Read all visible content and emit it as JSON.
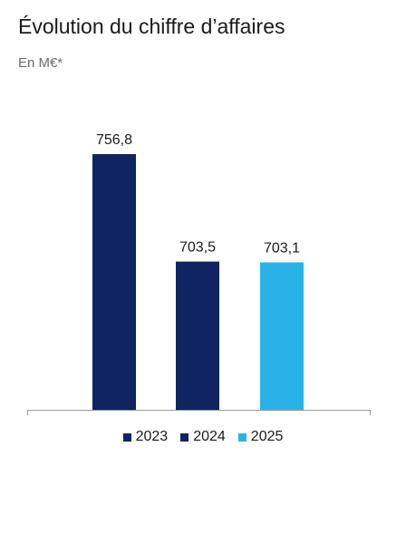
{
  "header": {
    "title": "Évolution du chiffre d’affaires",
    "subtitle": "En M€*"
  },
  "chart_data": {
    "type": "bar",
    "title": "Évolution du chiffre d’affaires",
    "subtitle": "En M€*",
    "xlabel": "",
    "ylabel": "",
    "categories": [
      "2023",
      "2024",
      "2025"
    ],
    "values": [
      756.8,
      703.5,
      703.1
    ],
    "value_labels": [
      "756,8",
      "703,5",
      "703,1"
    ],
    "colors": [
      "#0f2460",
      "#0f2460",
      "#29b2e8"
    ],
    "ylim": [
      630,
      770
    ],
    "grid": false,
    "legend": {
      "placement": "bottom",
      "entries": [
        {
          "label": "2023",
          "color": "#0f2460"
        },
        {
          "label": "2024",
          "color": "#0f2460"
        },
        {
          "label": "2025",
          "color": "#29b2e8"
        }
      ]
    }
  }
}
